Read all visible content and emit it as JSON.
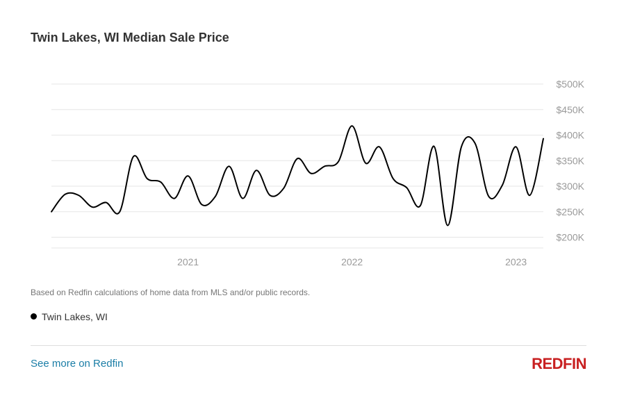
{
  "header": {
    "title": "Twin Lakes, WI Median Sale Price"
  },
  "footnote": "Based on Redfin calculations of home data from MLS and/or public records.",
  "legend": {
    "label": "Twin Lakes, WI"
  },
  "footer": {
    "link_text": "See more on Redfin",
    "logo_text": "REDFIN"
  },
  "colors": {
    "series": "#000000",
    "grid": "#e6e6e6",
    "axis_text": "#9a9a9a",
    "link": "#1a7da6",
    "brand": "#c82021"
  },
  "chart_data": {
    "type": "line",
    "title": "Twin Lakes, WI Median Sale Price",
    "xlabel": "",
    "ylabel": "",
    "x_ticks": [
      "2021",
      "2022",
      "2023"
    ],
    "y_ticks": [
      "$200K",
      "$250K",
      "$300K",
      "$350K",
      "$400K",
      "$450K",
      "$500K"
    ],
    "ylim": [
      180000,
      500000
    ],
    "y_axis_side": "right",
    "grid": true,
    "legend": "bottom-left",
    "series": [
      {
        "name": "Twin Lakes, WI",
        "x": [
          "2020-09",
          "2020-10",
          "2020-11",
          "2020-12",
          "2021-01",
          "2021-02",
          "2021-03",
          "2021-04",
          "2021-05",
          "2021-06",
          "2021-07",
          "2021-08",
          "2021-09",
          "2021-10",
          "2021-11",
          "2021-12",
          "2022-01",
          "2022-02",
          "2022-03",
          "2022-04",
          "2022-05",
          "2022-06",
          "2022-07",
          "2022-08",
          "2022-09",
          "2022-10",
          "2022-11",
          "2022-12",
          "2023-01",
          "2023-02",
          "2023-03",
          "2023-04",
          "2023-05",
          "2023-06",
          "2023-07",
          "2023-08",
          "2023-09"
        ],
        "values": [
          250000,
          284000,
          282000,
          259000,
          268000,
          250000,
          358000,
          315000,
          308000,
          276000,
          320000,
          264000,
          280000,
          339000,
          276000,
          331000,
          282000,
          296000,
          354000,
          325000,
          339000,
          348000,
          418000,
          345000,
          377000,
          315000,
          297000,
          262000,
          378000,
          223000,
          377000,
          384000,
          280000,
          302000,
          377000,
          282000,
          393000
        ]
      }
    ]
  }
}
